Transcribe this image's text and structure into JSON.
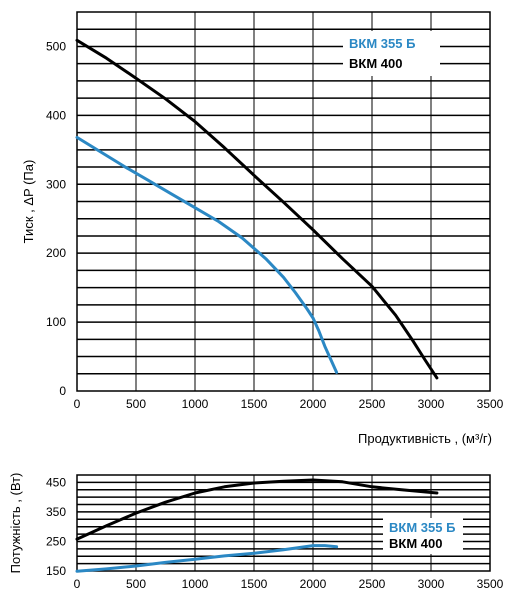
{
  "colors": {
    "blue": "#2b88c4",
    "black": "#000000",
    "legend_bg": "#ffffff"
  },
  "chart_data": [
    {
      "type": "line",
      "title": "",
      "xlabel": "Продуктивність , (м³/г)",
      "ylabel": "Тиск , ΔP (Па)",
      "xlim": [
        0,
        3500
      ],
      "ylim": [
        0,
        550
      ],
      "x_ticks": [
        "0",
        "500",
        "1000",
        "1500",
        "2000",
        "2500",
        "3000",
        "3500"
      ],
      "y_ticks": [
        "0",
        "100",
        "200",
        "300",
        "400",
        "500"
      ],
      "grid": true,
      "legend_position": "top-right",
      "series": [
        {
          "name": "ВКМ 355 Б",
          "color": "#2b88c4",
          "x": [
            0,
            200,
            400,
            600,
            800,
            1000,
            1200,
            1400,
            1600,
            1750,
            1850,
            1950,
            2000,
            2050,
            2100,
            2200
          ],
          "y": [
            368,
            347,
            326,
            306,
            286,
            266,
            246,
            222,
            192,
            165,
            143,
            119,
            106,
            87,
            65,
            27
          ]
        },
        {
          "name": "ВКМ 400",
          "color": "#000000",
          "x": [
            0,
            250,
            500,
            750,
            1000,
            1250,
            1500,
            1750,
            2000,
            2250,
            2500,
            2700,
            2850,
            2950,
            3050
          ],
          "y": [
            509,
            483,
            454,
            424,
            391,
            353,
            313,
            274,
            234,
            192,
            152,
            110,
            72,
            45,
            19
          ]
        }
      ]
    },
    {
      "type": "line",
      "title": "",
      "xlabel": "",
      "ylabel": "Потужність , (Вт)",
      "xlim": [
        0,
        3500
      ],
      "ylim": [
        150,
        475
      ],
      "x_ticks": [
        "0",
        "500",
        "1000",
        "1500",
        "2000",
        "2500",
        "3000",
        "3500"
      ],
      "y_ticks": [
        "150",
        "250",
        "350",
        "450"
      ],
      "grid": true,
      "legend_position": "bottom-right",
      "series": [
        {
          "name": "ВКМ 355 Б",
          "color": "#2b88c4",
          "x": [
            0,
            250,
            500,
            750,
            1000,
            1250,
            1500,
            1750,
            2000,
            2100,
            2200
          ],
          "y": [
            149,
            157,
            167,
            179,
            190,
            201,
            210,
            222,
            236,
            236,
            232
          ]
        },
        {
          "name": "ВКМ 400",
          "color": "#000000",
          "x": [
            0,
            250,
            500,
            750,
            1000,
            1250,
            1500,
            1750,
            2000,
            2250,
            2500,
            2750,
            3050
          ],
          "y": [
            258,
            303,
            346,
            383,
            414,
            435,
            448,
            454,
            458,
            452,
            435,
            425,
            414
          ]
        }
      ]
    }
  ]
}
